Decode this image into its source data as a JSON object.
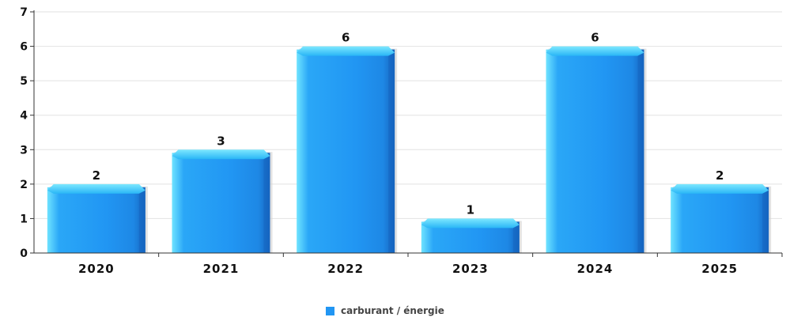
{
  "chart_data": {
    "type": "bar",
    "categories": [
      "2020",
      "2021",
      "2022",
      "2023",
      "2024",
      "2025"
    ],
    "series": [
      {
        "name": "carburant / énergie",
        "values": [
          2,
          3,
          6,
          1,
          6,
          2
        ],
        "color": "#2196f3"
      }
    ],
    "ylim": [
      0,
      7
    ],
    "yticks": [
      "0",
      "1",
      "2",
      "3",
      "4",
      "5",
      "6",
      "7"
    ],
    "grid": true,
    "legend_position": "bottom-center",
    "data_labels": true
  }
}
